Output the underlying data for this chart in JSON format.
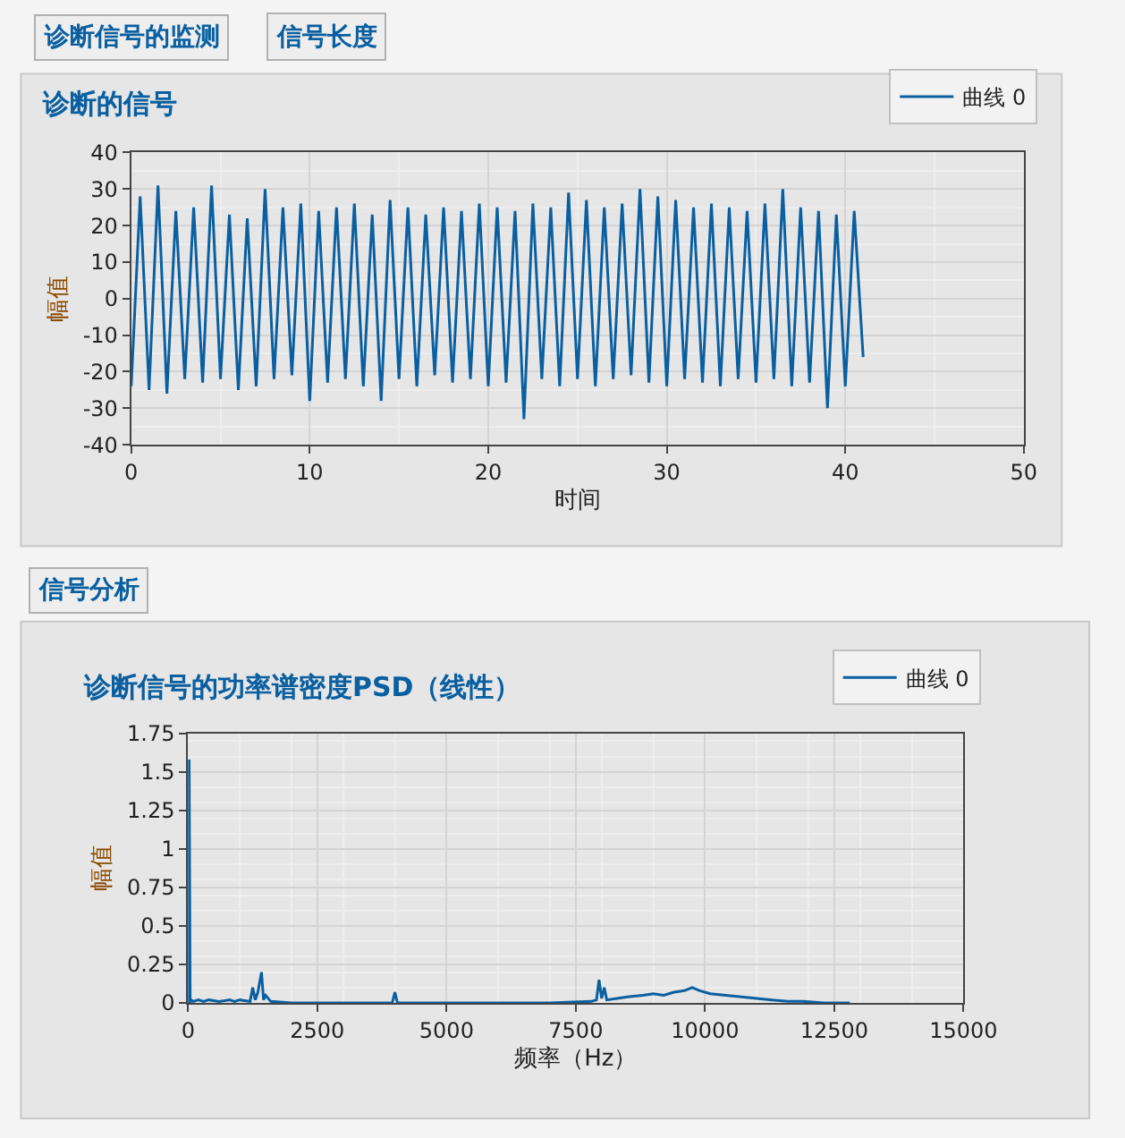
{
  "chart_data": [
    {
      "type": "line",
      "title": "诊断的信号",
      "xlabel": "时间",
      "ylabel": "幅值",
      "annotations": [
        "诊断信号的监测",
        "信号长度"
      ],
      "x": [
        0,
        0.5,
        1,
        1.5,
        2,
        2.5,
        3,
        3.5,
        4,
        4.5,
        5,
        5.5,
        6,
        6.5,
        7,
        7.5,
        8,
        8.5,
        9,
        9.5,
        10,
        10.5,
        11,
        11.5,
        12,
        12.5,
        13,
        13.5,
        14,
        14.5,
        15,
        15.5,
        16,
        16.5,
        17,
        17.5,
        18,
        18.5,
        19,
        19.5,
        20,
        20.5,
        21,
        21.5,
        22,
        22.5,
        23,
        23.5,
        24,
        24.5,
        25,
        25.5,
        26,
        26.5,
        27,
        27.5,
        28,
        28.5,
        29,
        29.5,
        30,
        30.5,
        31,
        31.5,
        32,
        32.5,
        33,
        33.5,
        34,
        34.5,
        35,
        35.5,
        36,
        36.5,
        37,
        37.5,
        38,
        38.5,
        39,
        39.5,
        40,
        40.5,
        41
      ],
      "series": [
        {
          "name": "曲线 0",
          "color": "#0a5fa0",
          "values": [
            -24,
            28,
            -25,
            31,
            -26,
            24,
            -22,
            25,
            -23,
            31,
            -22,
            23,
            -25,
            22,
            -24,
            30,
            -22,
            25,
            -21,
            26,
            -28,
            24,
            -23,
            25,
            -22,
            26,
            -24,
            23,
            -28,
            27,
            -22,
            25,
            -24,
            23,
            -21,
            25,
            -23,
            24,
            -22,
            26,
            -24,
            25,
            -23,
            24,
            -33,
            26,
            -22,
            25,
            -24,
            29,
            -22,
            27,
            -24,
            25,
            -22,
            26,
            -21,
            30,
            -23,
            28,
            -24,
            27,
            -22,
            25,
            -23,
            26,
            -24,
            25,
            -22,
            24,
            -23,
            26,
            -22,
            30,
            -24,
            25,
            -23,
            24,
            -30,
            23,
            -24,
            24,
            -16
          ]
        }
      ],
      "xlim": [
        0,
        50
      ],
      "xticks": [
        0,
        10,
        20,
        30,
        40,
        50
      ],
      "ylim": [
        -40,
        40
      ],
      "yticks": [
        -40,
        -30,
        -20,
        -10,
        0,
        10,
        20,
        30,
        40
      ],
      "grid": true,
      "legend": "top right"
    },
    {
      "type": "line",
      "title": "诊断信号的功率谱密度PSD（线性）",
      "xlabel": "频率（Hz）",
      "ylabel": "幅值",
      "annotations": [
        "信号分析"
      ],
      "x": [
        0,
        20,
        40,
        60,
        100,
        200,
        300,
        400,
        600,
        800,
        900,
        1000,
        1200,
        1250,
        1300,
        1350,
        1420,
        1460,
        1500,
        1600,
        2000,
        3000,
        3950,
        4000,
        4050,
        5000,
        6000,
        7000,
        7800,
        7900,
        7950,
        8000,
        8050,
        8100,
        8300,
        8500,
        8800,
        9000,
        9200,
        9400,
        9600,
        9750,
        9900,
        10100,
        10400,
        10700,
        11000,
        11300,
        11600,
        11900,
        12300,
        12800
      ],
      "series": [
        {
          "name": "曲线 0",
          "color": "#0a5fa0",
          "values": [
            0,
            1.58,
            0,
            0.02,
            0.01,
            0.02,
            0.01,
            0.02,
            0.01,
            0.02,
            0.01,
            0.02,
            0.01,
            0.1,
            0.02,
            0.07,
            0.2,
            0.02,
            0.05,
            0.01,
            0,
            0,
            0,
            0.07,
            0,
            0,
            0,
            0,
            0.01,
            0.02,
            0.15,
            0.03,
            0.1,
            0.02,
            0.03,
            0.04,
            0.05,
            0.06,
            0.05,
            0.07,
            0.08,
            0.1,
            0.08,
            0.06,
            0.05,
            0.04,
            0.03,
            0.02,
            0.01,
            0.01,
            0,
            0
          ]
        }
      ],
      "xlim": [
        0,
        15000
      ],
      "xticks": [
        0,
        2500,
        5000,
        7500,
        10000,
        12500,
        15000
      ],
      "ylim": [
        0,
        1.75
      ],
      "yticks": [
        0,
        0.25,
        0.5,
        0.75,
        1,
        1.25,
        1.5,
        1.75
      ],
      "grid": true,
      "legend": "top right"
    }
  ]
}
